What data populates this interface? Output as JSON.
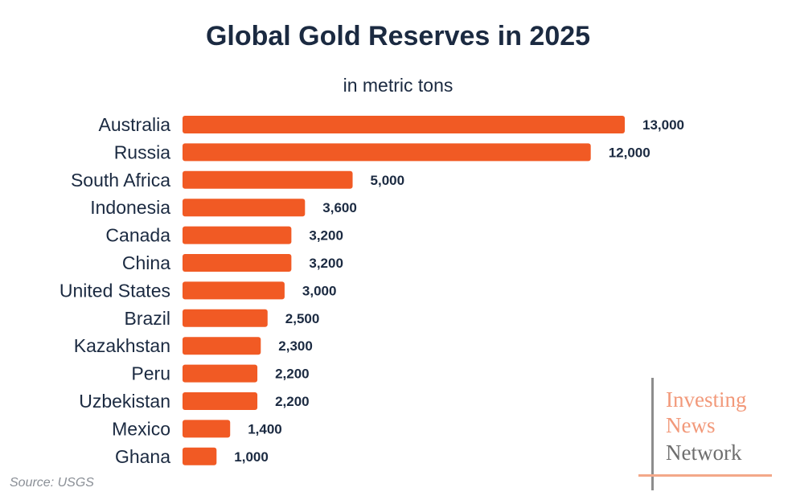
{
  "chart_data": {
    "type": "bar",
    "orientation": "horizontal",
    "title": "Global Gold Reserves in 2025",
    "subtitle": "in metric tons",
    "categories": [
      "Australia",
      "Russia",
      "South Africa",
      "Indonesia",
      "Canada",
      "China",
      "United States",
      "Brazil",
      "Kazakhstan",
      "Peru",
      "Uzbekistan",
      "Mexico",
      "Ghana"
    ],
    "values": [
      13000,
      12000,
      5000,
      3600,
      3200,
      3200,
      3000,
      2500,
      2300,
      2200,
      2200,
      1400,
      1000
    ],
    "value_labels": [
      "13,000",
      "12,000",
      "5,000",
      "3,600",
      "3,200",
      "3,200",
      "3,000",
      "2,500",
      "2,300",
      "2,200",
      "2,200",
      "1,400",
      "1,000"
    ],
    "xlim": [
      0,
      13000
    ],
    "grid": false,
    "bar_color": "#f15a24"
  },
  "source": "Source: USGS",
  "logo": {
    "line1": "Investing",
    "line2": "News",
    "line3": "Network"
  },
  "colors": {
    "title": "#1b2a41",
    "bar": "#f15a24",
    "logo_accent": "#f2997a",
    "logo_dark": "#6e6e6e"
  }
}
